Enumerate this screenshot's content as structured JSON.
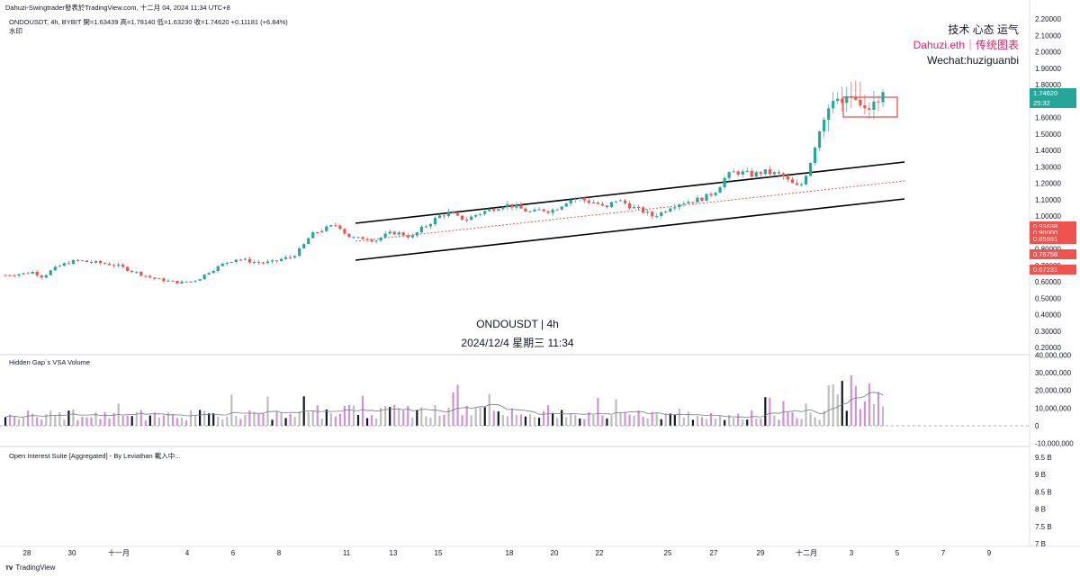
{
  "header": {
    "published": "Dahuzi-Swingtrader發表於TradingView.com, 十二月 04, 2024 11:34 UTC+8",
    "symbol_line": "ONDOUSDT, 4h, BYBIT  開=1.63439  高=1.78140  低=1.63230  收=1.74620  +0.11181 (+6.84%)",
    "indicator_label": "水印"
  },
  "watermark": {
    "line1": "技术 心态 运气",
    "line2": "Dahuzi.eth｜传统图表",
    "line3": "Wechat:huziguanbi",
    "center_symbol": "ONDOUSDT | 4h",
    "center_date": "2024/12/4 星期三 11:34",
    "line2_color": "#e91e63"
  },
  "price_tags": [
    {
      "value": "1.74620",
      "extra": "25:32",
      "color": "#26a69a"
    },
    {
      "value": "0.93638",
      "color": "#ef5350"
    },
    {
      "value": "0.90000",
      "color": "#ef5350"
    },
    {
      "value": "0.85991",
      "color": "#ef5350"
    },
    {
      "value": "0.76758",
      "color": "#ef5350"
    },
    {
      "value": "0.67231",
      "color": "#ef5350"
    }
  ],
  "panes": {
    "volume_title": "Hidden Gap`s VSA Volume",
    "oi_title": "Open Interest Suite [Aggregated] - By Leviathan 載入中..."
  },
  "footer": {
    "brand": "TradingView"
  },
  "colors": {
    "up": "#26a69a",
    "down": "#ef5350",
    "vol_up": "#bdbdbd",
    "vol_down": "#ce93d8"
  },
  "chart_data": [
    {
      "type": "line",
      "title": "ONDOUSDT, 4h, BYBIT",
      "y_scale": "linear",
      "ylim": [
        0.18,
        2.22
      ],
      "y_ticks": [
        "2.20000",
        "2.10000",
        "2.00000",
        "1.90000",
        "1.80000",
        "1.70000",
        "1.60000",
        "1.50000",
        "1.40000",
        "1.30000",
        "1.20000",
        "1.10000",
        "1.00000",
        "0.90000",
        "0.80000",
        "0.70000",
        "0.60000",
        "0.50000",
        "0.40000",
        "0.30000",
        "0.20000"
      ],
      "x_ticks": [
        "28",
        "30",
        "十一月",
        "4",
        "6",
        "8",
        "11",
        "13",
        "15",
        "18",
        "20",
        "22",
        "25",
        "27",
        "29",
        "十二月",
        "3",
        "5",
        "7",
        "9"
      ],
      "series": [
        {
          "values": [
            0.64,
            0.645,
            0.65,
            0.66,
            0.63,
            0.67,
            0.7,
            0.72,
            0.73,
            0.72,
            0.715,
            0.71,
            0.7,
            0.68,
            0.66,
            0.64,
            0.62,
            0.61,
            0.6,
            0.595,
            0.6,
            0.62,
            0.66,
            0.69,
            0.72,
            0.74,
            0.73,
            0.72,
            0.715,
            0.72,
            0.74,
            0.75,
            0.8,
            0.88,
            0.91,
            0.93,
            0.95,
            0.88,
            0.86,
            0.87,
            0.85,
            0.88,
            0.9,
            0.89,
            0.87,
            0.92,
            0.96,
            1.0,
            1.02,
            0.99,
            0.98,
            1.01,
            1.03,
            1.05,
            1.07,
            1.06,
            1.04,
            1.02,
            1.04,
            1.03,
            1.06,
            1.1,
            1.11,
            1.09,
            1.08,
            1.04,
            1.1,
            1.08,
            1.05,
            1.03,
            1.0,
            1.02,
            1.06,
            1.08,
            1.09,
            1.1,
            1.12,
            1.16,
            1.24,
            1.27,
            1.26,
            1.25,
            1.27,
            1.26,
            1.25,
            1.2,
            1.17,
            1.3,
            1.5,
            1.66,
            1.69,
            1.72,
            1.7,
            1.64,
            1.68,
            1.746
          ]
        }
      ],
      "annotations": [
        "ascending channel",
        "highlight box near top"
      ]
    },
    {
      "type": "bar",
      "title": "Hidden Gap`s VSA Volume",
      "ylim": [
        -10000000,
        40000000
      ],
      "y_ticks": [
        "40,000,000",
        "30,000,000",
        "20,000,000",
        "10,000,000",
        "0",
        "-10,000,000"
      ]
    },
    {
      "type": "line",
      "title": "Open Interest Suite [Aggregated] - By Leviathan",
      "y_ticks": [
        "9.5 B",
        "9 B",
        "8.5 B",
        "8 B",
        "7.5 B",
        "7 B"
      ]
    }
  ]
}
